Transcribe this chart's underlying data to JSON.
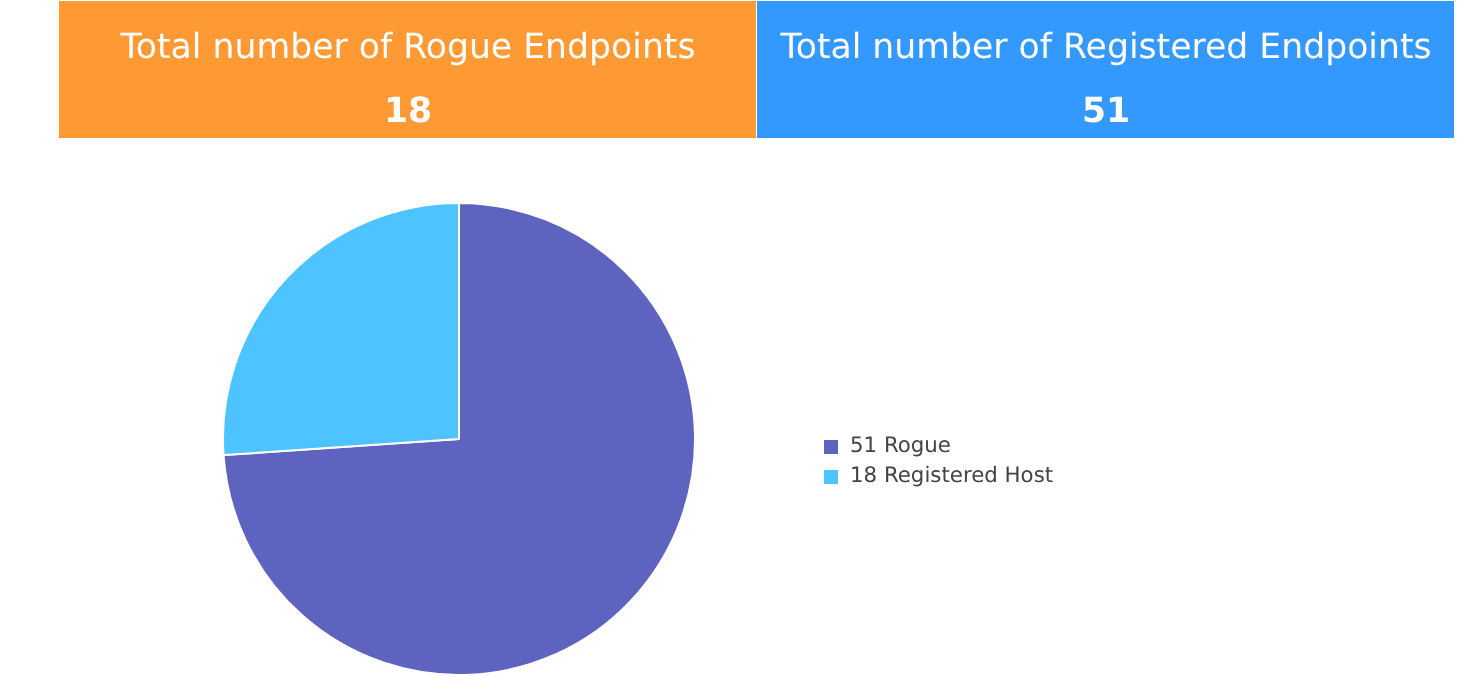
{
  "chart_data": [
    {
      "type": "other",
      "title": "Total number of Rogue Endpoints",
      "annotations": [
        "18"
      ],
      "color": "#ff9933"
    },
    {
      "type": "other",
      "title": "Total number of Registered Endpoints",
      "annotations": [
        "51"
      ],
      "color": "#3399ff"
    },
    {
      "type": "pie",
      "categories": [
        "51 Rogue",
        "18 Registered Host"
      ],
      "values": [
        51,
        18
      ],
      "colors": [
        "#5e63c0",
        "#4dc3ff"
      ],
      "legend": "right"
    }
  ]
}
